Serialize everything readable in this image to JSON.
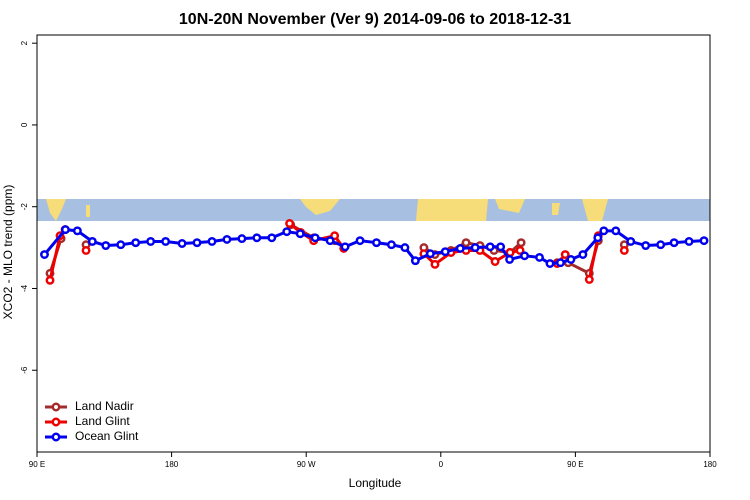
{
  "chart_data": {
    "type": "line",
    "title": "10N-20N November (Ver 9)   2014-09-06 to 2018-12-31",
    "x_label": "Longitude",
    "y_label": "XCO2 - MLO trend (ppm)",
    "xlim": [
      90,
      540
    ],
    "ylim": [
      -8.0,
      2.2
    ],
    "xticks": [
      {
        "value": 90,
        "label": "90 E"
      },
      {
        "value": 180,
        "label": "180"
      },
      {
        "value": 270,
        "label": "90 W"
      },
      {
        "value": 360,
        "label": "0"
      },
      {
        "value": 450,
        "label": "90 E"
      },
      {
        "value": 540,
        "label": "180"
      }
    ],
    "yticks": [
      2,
      0,
      -2,
      -4,
      -6
    ],
    "legend": "bottom-left",
    "series": [
      {
        "name": "Land Nadir",
        "color": "#a52a2a",
        "x": [
          98.7,
          106.1,
          null,
          122.8,
          null,
          259.6,
          275,
          289,
          null,
          348.7,
          356.1,
          366.8,
          376.9,
          386.2,
          395.6,
          406.3,
          413.7,
          null,
          437.8,
          445.2,
          459.3,
          465.3,
          null,
          482.7
        ],
        "values": [
          -3.63,
          -2.78,
          null,
          -2.93,
          null,
          -2.44,
          -2.76,
          -2.83,
          null,
          -3.0,
          -3.17,
          -3.07,
          -2.88,
          -2.95,
          -3.07,
          -3.12,
          -2.88,
          null,
          -3.37,
          -3.37,
          -3.63,
          -2.83,
          null,
          -2.93
        ]
      },
      {
        "name": "Land Glint",
        "color": "#ee0000",
        "x": [
          98.7,
          105.4,
          108.8,
          null,
          122.8,
          null,
          258.9,
          266.3,
          275,
          289,
          295.1,
          null,
          348.7,
          356.1,
          366.8,
          376.9,
          386.2,
          396.3,
          406.3,
          413,
          null,
          437.8,
          443.2,
          null,
          459.3,
          465.3,
          null,
          482.7
        ],
        "values": [
          -3.8,
          -2.71,
          -2.56,
          null,
          -3.07,
          null,
          -2.41,
          -2.63,
          -2.83,
          -2.71,
          -3.02,
          null,
          -3.15,
          -3.41,
          -3.12,
          -3.07,
          -3.07,
          -3.34,
          -3.12,
          -3.07,
          null,
          -3.39,
          -3.17,
          null,
          -3.78,
          -2.71,
          null,
          -3.07
        ]
      },
      {
        "name": "Ocean Glint",
        "color": "#0000ee",
        "x": [
          95,
          109,
          117,
          127,
          136,
          146,
          156,
          166,
          176,
          187,
          197,
          207,
          217,
          227,
          237,
          247,
          257,
          266,
          276,
          286,
          296,
          306,
          317,
          327,
          336,
          343,
          353,
          363,
          373,
          383,
          393,
          400,
          406,
          416,
          426,
          433,
          440,
          447,
          455,
          465,
          469,
          477,
          487,
          497,
          507,
          516,
          526,
          536
        ],
        "values": [
          -3.17,
          -2.56,
          -2.59,
          -2.85,
          -2.95,
          -2.93,
          -2.88,
          -2.85,
          -2.85,
          -2.9,
          -2.88,
          -2.85,
          -2.8,
          -2.78,
          -2.76,
          -2.76,
          -2.61,
          -2.66,
          -2.76,
          -2.83,
          -2.98,
          -2.83,
          -2.88,
          -2.93,
          -3.0,
          -3.32,
          -3.15,
          -3.1,
          -3.02,
          -3.0,
          -2.98,
          -2.98,
          -3.29,
          -3.2,
          -3.24,
          -3.39,
          -3.37,
          -3.29,
          -3.17,
          -2.76,
          -2.59,
          -2.59,
          -2.85,
          -2.95,
          -2.93,
          -2.88,
          -2.85,
          -2.83
        ]
      }
    ]
  }
}
